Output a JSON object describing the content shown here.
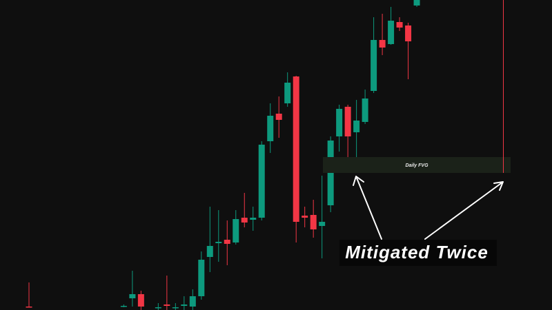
{
  "chart_data": {
    "type": "candlestick",
    "annotations": {
      "zone": "Daily FVG",
      "note": "Mitigated Twice"
    },
    "up_color": "#0d9a7e",
    "down_color": "#f23645",
    "ylim": [
      0,
      450
    ],
    "categories": [
      null,
      null,
      null,
      null,
      null,
      null,
      null,
      null,
      null,
      null,
      null,
      null,
      null,
      null,
      null,
      null,
      null,
      null,
      null,
      null,
      null,
      null,
      null,
      null,
      null,
      null,
      null,
      null,
      null,
      null,
      null,
      null,
      null,
      null,
      null,
      null,
      null,
      null,
      null,
      null,
      null,
      null,
      null,
      null,
      null,
      null
    ],
    "open": [
      5,
      null,
      null,
      null,
      null,
      null,
      null,
      null,
      null,
      null,
      null,
      5,
      17,
      23,
      null,
      3,
      8,
      3,
      6,
      5,
      20,
      77,
      97,
      102,
      98,
      134,
      131,
      134,
      245,
      285,
      300,
      339,
      137,
      138,
      122,
      152,
      252,
      295,
      258,
      273,
      318,
      392,
      386,
      418,
      413,
      442
    ],
    "high": [
      40,
      null,
      null,
      null,
      null,
      null,
      null,
      null,
      null,
      null,
      null,
      8,
      57,
      28,
      null,
      10,
      50,
      10,
      20,
      30,
      85,
      150,
      145,
      130,
      145,
      170,
      150,
      245,
      300,
      310,
      345,
      340,
      150,
      160,
      195,
      252,
      298,
      298,
      305,
      320,
      425,
      430,
      440,
      425,
      417,
      460
    ],
    "low": [
      4,
      null,
      null,
      null,
      null,
      null,
      null,
      null,
      null,
      null,
      null,
      4,
      5,
      0,
      null,
      0,
      0,
      0,
      0,
      0,
      15,
      55,
      70,
      65,
      95,
      120,
      115,
      130,
      228,
      250,
      295,
      98,
      120,
      105,
      75,
      142,
      230,
      222,
      205,
      270,
      315,
      370,
      385,
      405,
      335,
      440
    ],
    "close": [
      4,
      null,
      null,
      null,
      null,
      null,
      null,
      null,
      null,
      null,
      null,
      6,
      23,
      5,
      null,
      4,
      6,
      4,
      8,
      20,
      73,
      93,
      99,
      96,
      132,
      127,
      134,
      240,
      282,
      276,
      330,
      128,
      134,
      117,
      128,
      246,
      292,
      252,
      275,
      307,
      392,
      381,
      420,
      410,
      390,
      452
    ]
  }
}
